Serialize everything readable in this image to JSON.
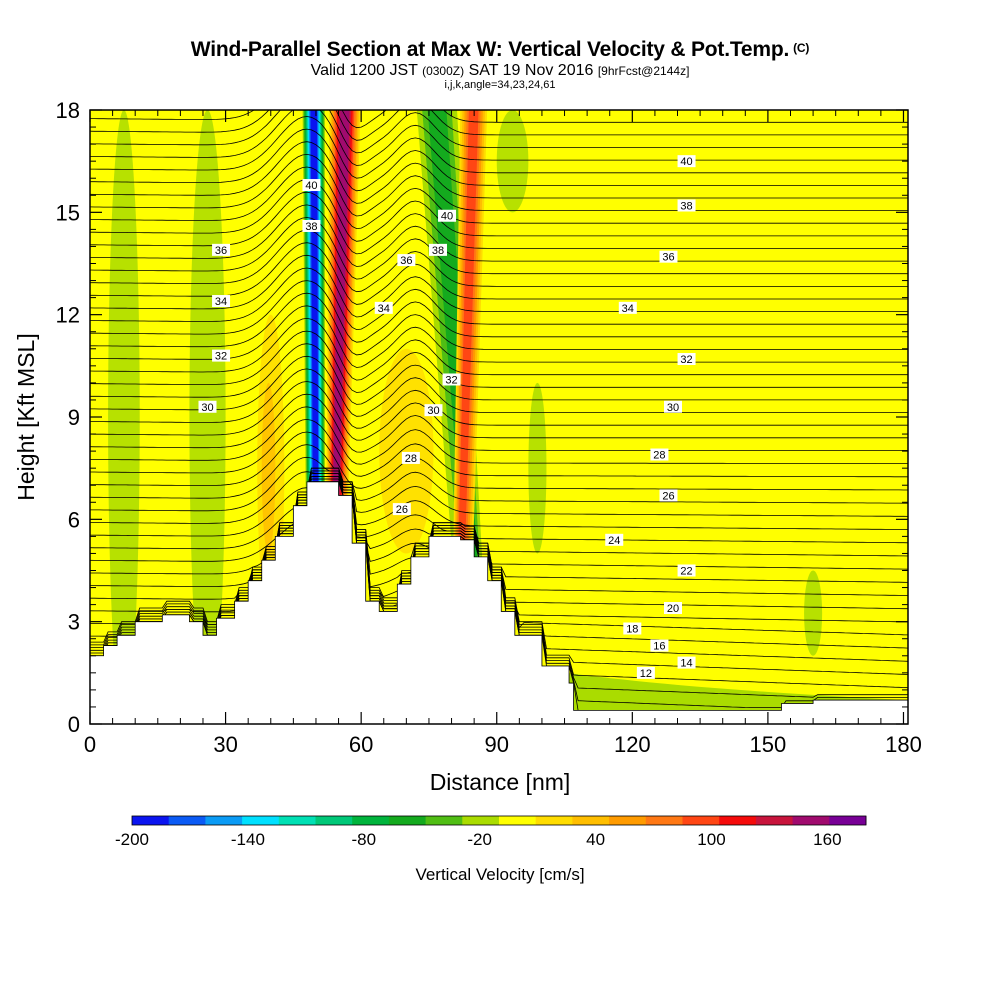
{
  "header": {
    "title": "Wind-Parallel Section at Max W: Vertical Velocity & Pot.Temp.",
    "title_mark": "(C)",
    "subtitle_valid": "Valid 1200 JST",
    "subtitle_zulu": "(0300Z)",
    "subtitle_date": "SAT 19 Nov 2016",
    "subtitle_fcst": "[9hrFcst@2144z]",
    "params": "i,j,k,angle=34,23,24,61"
  },
  "chart_data": {
    "type": "heatmap",
    "title": "Wind-Parallel Section at Max W: Vertical Velocity & Pot.Temp.",
    "xlabel": "Distance [nm]",
    "ylabel": "Height [Kft MSL]",
    "xlim": [
      0,
      181
    ],
    "ylim": [
      0,
      18
    ],
    "x_ticks": [
      "0",
      "30",
      "60",
      "90",
      "120",
      "150",
      "180"
    ],
    "y_ticks": [
      "0",
      "3",
      "6",
      "9",
      "12",
      "15",
      "18"
    ],
    "colorbar": {
      "label": "Vertical Velocity [cm/s]",
      "tick_labels": [
        "-200",
        "-140",
        "-80",
        "-20",
        "40",
        "100",
        "160"
      ],
      "tick_values": [
        -200,
        -140,
        -80,
        -20,
        40,
        100,
        160
      ],
      "range": [
        -200,
        180
      ],
      "step": 20,
      "colors": [
        "#0a14f0",
        "#0a5af5",
        "#0a9bf5",
        "#00e0ff",
        "#00e0b4",
        "#00c878",
        "#00b43c",
        "#14aa1e",
        "#50be14",
        "#aadc00",
        "#ffff00",
        "#ffdc00",
        "#ffbe00",
        "#ff9b00",
        "#ff7814",
        "#ff4614",
        "#f50a0a",
        "#c8143c",
        "#a00a6e",
        "#780096"
      ]
    },
    "velocity_bands": [
      {
        "name": "downdraft-1",
        "w": -190,
        "top_x": [
          47,
          52
        ],
        "bottom_x": [
          48,
          52
        ]
      },
      {
        "name": "updraft-1",
        "w": 150,
        "top_x": [
          53,
          60
        ],
        "bottom_x": [
          52,
          56
        ]
      },
      {
        "name": "downdraft-2",
        "w": -60,
        "top_x": [
          72,
          81
        ],
        "bottom_x": [
          82,
          88
        ]
      },
      {
        "name": "updraft-2",
        "w": 90,
        "top_x": [
          82,
          88
        ],
        "bottom_x": [
          80,
          84
        ]
      }
    ],
    "terrain_x": [
      0,
      3,
      6,
      10,
      16,
      22,
      25,
      28,
      32,
      35,
      38,
      41,
      45,
      48,
      52,
      55,
      58,
      61,
      64,
      68,
      71,
      75,
      78,
      82,
      85,
      88,
      91,
      94,
      100,
      106,
      107,
      115,
      130,
      150,
      153,
      160,
      181
    ],
    "terrain_kft": [
      2.0,
      2.3,
      2.6,
      3.0,
      3.2,
      3.0,
      2.6,
      3.1,
      3.6,
      4.2,
      4.8,
      5.5,
      6.4,
      7.1,
      7.1,
      6.7,
      5.3,
      3.6,
      3.3,
      4.1,
      4.9,
      5.5,
      5.5,
      5.4,
      4.9,
      4.2,
      3.3,
      2.6,
      1.7,
      1.2,
      0.4,
      0.4,
      0.4,
      0.4,
      0.6,
      0.7,
      0.7
    ],
    "isentrope_labels": [
      {
        "text": "40",
        "x": 132,
        "y": 16.5
      },
      {
        "text": "38",
        "x": 132,
        "y": 15.2
      },
      {
        "text": "36",
        "x": 128,
        "y": 13.7
      },
      {
        "text": "34",
        "x": 119,
        "y": 12.2
      },
      {
        "text": "32",
        "x": 132,
        "y": 10.7
      },
      {
        "text": "30",
        "x": 129,
        "y": 9.3
      },
      {
        "text": "28",
        "x": 126,
        "y": 7.9
      },
      {
        "text": "26",
        "x": 128,
        "y": 6.7
      },
      {
        "text": "24",
        "x": 116,
        "y": 5.4
      },
      {
        "text": "22",
        "x": 132,
        "y": 4.5
      },
      {
        "text": "20",
        "x": 129,
        "y": 3.4
      },
      {
        "text": "18",
        "x": 120,
        "y": 2.8
      },
      {
        "text": "16",
        "x": 126,
        "y": 2.3
      },
      {
        "text": "14",
        "x": 132,
        "y": 1.8
      },
      {
        "text": "12",
        "x": 123,
        "y": 1.5
      },
      {
        "text": "36",
        "x": 29,
        "y": 13.9
      },
      {
        "text": "34",
        "x": 29,
        "y": 12.4
      },
      {
        "text": "32",
        "x": 29,
        "y": 10.8
      },
      {
        "text": "30",
        "x": 26,
        "y": 9.3
      },
      {
        "text": "40",
        "x": 49,
        "y": 15.8
      },
      {
        "text": "38",
        "x": 49,
        "y": 14.6
      },
      {
        "text": "40",
        "x": 79,
        "y": 14.9
      },
      {
        "text": "38",
        "x": 77,
        "y": 13.9
      },
      {
        "text": "36",
        "x": 70,
        "y": 13.6
      },
      {
        "text": "34",
        "x": 65,
        "y": 12.2
      },
      {
        "text": "32",
        "x": 80,
        "y": 10.1
      },
      {
        "text": "30",
        "x": 76,
        "y": 9.2
      },
      {
        "text": "28",
        "x": 71,
        "y": 7.8
      },
      {
        "text": "26",
        "x": 69,
        "y": 6.3
      }
    ]
  }
}
